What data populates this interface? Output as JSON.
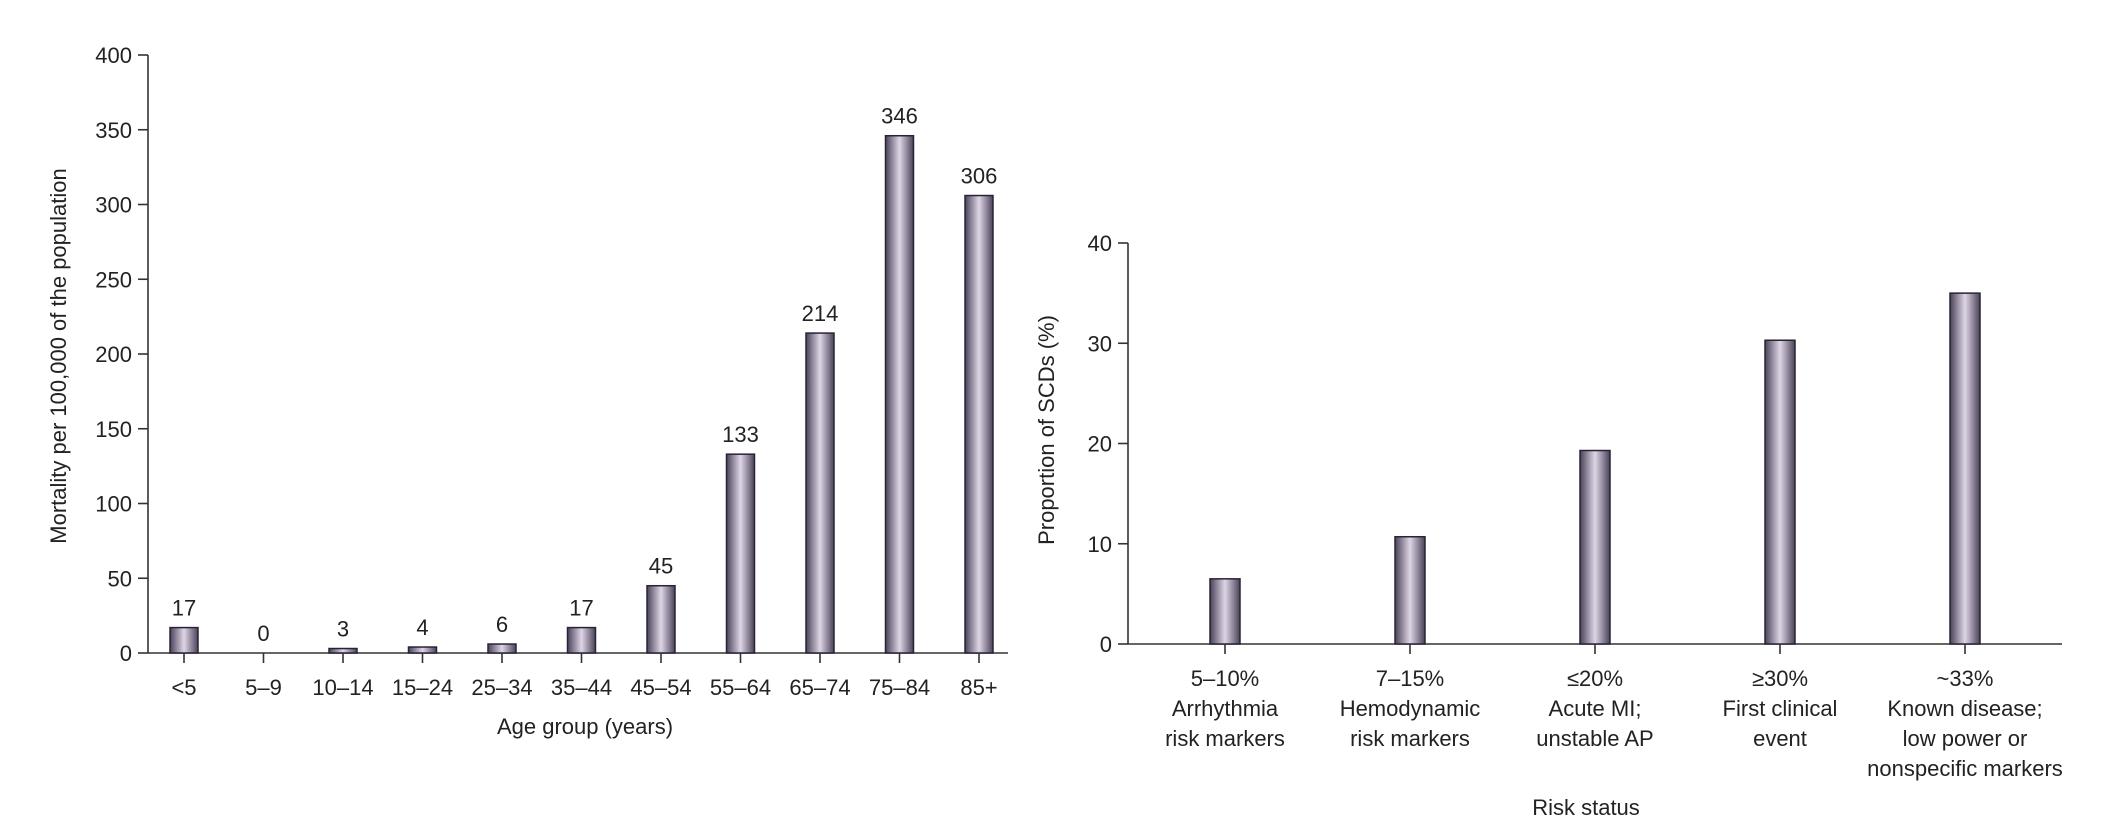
{
  "colors": {
    "bar_edge": "#4a4258",
    "bar_highlight": "#ded6e6",
    "bar_stroke": "#2a2236",
    "axis": "#333333"
  },
  "chart_data": [
    {
      "type": "bar",
      "title": "",
      "categories": [
        "<5",
        "5–9",
        "10–14",
        "15–24",
        "25–34",
        "35–44",
        "45–54",
        "55–64",
        "65–74",
        "75–84",
        "85+"
      ],
      "values": [
        17,
        0,
        3,
        4,
        6,
        17,
        45,
        133,
        214,
        346,
        306
      ],
      "data_labels": [
        "17",
        "0",
        "3",
        "4",
        "6",
        "17",
        "45",
        "133",
        "214",
        "346",
        "306"
      ],
      "xlabel": "Age group (years)",
      "ylabel": "Mortality per 100,000 of the population",
      "ylim": [
        0,
        400
      ],
      "yticks": [
        0,
        50,
        100,
        150,
        200,
        250,
        300,
        350,
        400
      ],
      "ytick_labels": [
        "0",
        "50",
        "100",
        "150",
        "200",
        "250",
        "300",
        "350",
        "400"
      ],
      "grid": false,
      "legend": "none"
    },
    {
      "type": "bar",
      "title": "",
      "categories": [
        [
          "5–10%",
          "Arrhythmia",
          "risk markers"
        ],
        [
          "7–15%",
          "Hemodynamic",
          "risk markers"
        ],
        [
          "≤20%",
          "Acute MI;",
          "unstable AP"
        ],
        [
          "≥30%",
          "First clinical",
          "event"
        ],
        [
          "~33%",
          "Known disease;",
          "low power or",
          "nonspecific markers"
        ]
      ],
      "values": [
        6.5,
        10.7,
        19.3,
        30.3,
        35.0
      ],
      "xlabel": "Risk status",
      "ylabel": "Proportion of SCDs (%)",
      "ylim": [
        0,
        40
      ],
      "yticks": [
        0,
        10,
        20,
        30,
        40
      ],
      "ytick_labels": [
        "0",
        "10",
        "20",
        "30",
        "40"
      ],
      "grid": false,
      "legend": "none"
    }
  ]
}
